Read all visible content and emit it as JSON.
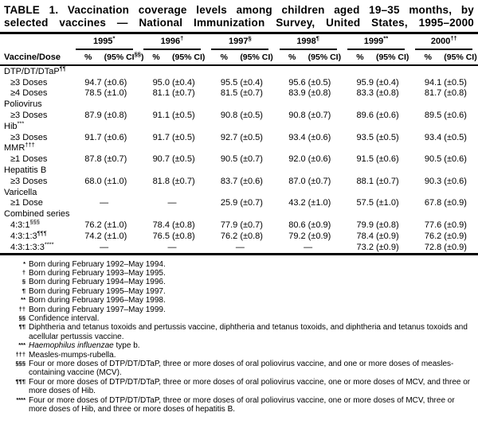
{
  "title": {
    "line1": "TABLE 1. Vaccination coverage levels among children aged 19–35 months, by",
    "line2": "selected vaccines — National Immunization Survey, United States, 1995–2000"
  },
  "table": {
    "row_header_label": "Vaccine/Dose",
    "pct_label": "%",
    "ci_prefix": "(95% CI",
    "ci_suffix": ")",
    "no_data_symbol": "—",
    "years": [
      {
        "year": "1995",
        "marker": "*",
        "ci_marker": "§§"
      },
      {
        "year": "1996",
        "marker": "†",
        "ci_marker": ""
      },
      {
        "year": "1997",
        "marker": "§",
        "ci_marker": ""
      },
      {
        "year": "1998",
        "marker": "¶",
        "ci_marker": ""
      },
      {
        "year": "1999",
        "marker": "**",
        "ci_marker": ""
      },
      {
        "year": "2000",
        "marker": "††",
        "ci_marker": ""
      }
    ],
    "rows": [
      {
        "label": "DTP/DT/DTaP",
        "marker": "¶¶",
        "type": "group",
        "values": []
      },
      {
        "label": "≥3 Doses",
        "marker": "",
        "type": "dose",
        "values": [
          [
            "94.7",
            "(±0.6)"
          ],
          [
            "95.0",
            "(±0.4)"
          ],
          [
            "95.5",
            "(±0.4)"
          ],
          [
            "95.6",
            "(±0.5)"
          ],
          [
            "95.9",
            "(±0.4)"
          ],
          [
            "94.1",
            "(±0.5)"
          ]
        ]
      },
      {
        "label": "≥4 Doses",
        "marker": "",
        "type": "dose",
        "values": [
          [
            "78.5",
            "(±1.0)"
          ],
          [
            "81.1",
            "(±0.7)"
          ],
          [
            "81.5",
            "(±0.7)"
          ],
          [
            "83.9",
            "(±0.8)"
          ],
          [
            "83.3",
            "(±0.8)"
          ],
          [
            "81.7",
            "(±0.8)"
          ]
        ]
      },
      {
        "label": "Poliovirus",
        "marker": "",
        "type": "group",
        "values": []
      },
      {
        "label": "≥3 Doses",
        "marker": "",
        "type": "dose",
        "values": [
          [
            "87.9",
            "(±0.8)"
          ],
          [
            "91.1",
            "(±0.5)"
          ],
          [
            "90.8",
            "(±0.5)"
          ],
          [
            "90.8",
            "(±0.7)"
          ],
          [
            "89.6",
            "(±0.6)"
          ],
          [
            "89.5",
            "(±0.6)"
          ]
        ]
      },
      {
        "label": "Hib",
        "marker": "***",
        "type": "group",
        "values": []
      },
      {
        "label": "≥3 Doses",
        "marker": "",
        "type": "dose",
        "values": [
          [
            "91.7",
            "(±0.6)"
          ],
          [
            "91.7",
            "(±0.5)"
          ],
          [
            "92.7",
            "(±0.5)"
          ],
          [
            "93.4",
            "(±0.6)"
          ],
          [
            "93.5",
            "(±0.5)"
          ],
          [
            "93.4",
            "(±0.5)"
          ]
        ]
      },
      {
        "label": "MMR",
        "marker": "†††",
        "type": "group",
        "values": []
      },
      {
        "label": "≥1 Doses",
        "marker": "",
        "type": "dose",
        "values": [
          [
            "87.8",
            "(±0.7)"
          ],
          [
            "90.7",
            "(±0.5)"
          ],
          [
            "90.5",
            "(±0.7)"
          ],
          [
            "92.0",
            "(±0.6)"
          ],
          [
            "91.5",
            "(±0.6)"
          ],
          [
            "90.5",
            "(±0.6)"
          ]
        ]
      },
      {
        "label": "Hepatitis B",
        "marker": "",
        "type": "group",
        "values": []
      },
      {
        "label": "≥3 Doses",
        "marker": "",
        "type": "dose",
        "values": [
          [
            "68.0",
            "(±1.0)"
          ],
          [
            "81.8",
            "(±0.7)"
          ],
          [
            "83.7",
            "(±0.6)"
          ],
          [
            "87.0",
            "(±0.7)"
          ],
          [
            "88.1",
            "(±0.7)"
          ],
          [
            "90.3",
            "(±0.6)"
          ]
        ]
      },
      {
        "label": "Varicella",
        "marker": "",
        "type": "group",
        "values": []
      },
      {
        "label": "≥1 Dose",
        "marker": "",
        "type": "dose",
        "values": [
          [
            "—",
            ""
          ],
          [
            "—",
            ""
          ],
          [
            "25.9",
            "(±0.7)"
          ],
          [
            "43.2",
            "(±1.0)"
          ],
          [
            "57.5",
            "(±1.0)"
          ],
          [
            "67.8",
            "(±0.9)"
          ]
        ]
      },
      {
        "label": "Combined series",
        "marker": "",
        "type": "group",
        "values": []
      },
      {
        "label": "4:3:1",
        "marker": "§§§",
        "type": "dose",
        "values": [
          [
            "76.2",
            "(±1.0)"
          ],
          [
            "78.4",
            "(±0.8)"
          ],
          [
            "77.9",
            "(±0.7)"
          ],
          [
            "80.6",
            "(±0.9)"
          ],
          [
            "79.9",
            "(±0.8)"
          ],
          [
            "77.6",
            "(±0.9)"
          ]
        ]
      },
      {
        "label": "4:3:1:3",
        "marker": "¶¶¶",
        "type": "dose",
        "values": [
          [
            "74.2",
            "(±1.0)"
          ],
          [
            "76.5",
            "(±0.8)"
          ],
          [
            "76.2",
            "(±0.8)"
          ],
          [
            "79.2",
            "(±0.9)"
          ],
          [
            "78.4",
            "(±0.9)"
          ],
          [
            "76.2",
            "(±0.9)"
          ]
        ]
      },
      {
        "label": "4:3:1:3:3",
        "marker": "****",
        "type": "dose",
        "values": [
          [
            "—",
            ""
          ],
          [
            "—",
            ""
          ],
          [
            "—",
            ""
          ],
          [
            "—",
            ""
          ],
          [
            "73.2",
            "(±0.9)"
          ],
          [
            "72.8",
            "(±0.9)"
          ]
        ]
      }
    ]
  },
  "footnotes": [
    {
      "marker": "*",
      "text": "Born during February 1992–May 1994."
    },
    {
      "marker": "†",
      "text": "Born during February 1993–May 1995."
    },
    {
      "marker": "§",
      "text": "Born during February 1994–May 1996."
    },
    {
      "marker": "¶",
      "text": "Born during February 1995–May 1997."
    },
    {
      "marker": "**",
      "text": "Born during February 1996–May 1998."
    },
    {
      "marker": "††",
      "text": "Born during February 1997–May 1999."
    },
    {
      "marker": "§§",
      "text": "Confidence interval."
    },
    {
      "marker": "¶¶",
      "text": "Diphtheria and tetanus toxoids and pertussis vaccine, diphtheria and tetanus toxoids, and diphtheria and tetanus toxoids and acellular pertussis vaccine."
    },
    {
      "marker": "***",
      "parts": [
        {
          "text": "Haemophilus influenzae",
          "italic": true
        },
        {
          "text": " type b.",
          "italic": false
        }
      ]
    },
    {
      "marker": "†††",
      "text": "Measles-mumps-rubella."
    },
    {
      "marker": "§§§",
      "text": "Four or more doses of DTP/DT/DTaP, three or more doses of oral poliovirus vaccine, and one or more doses of measles-containing vaccine (MCV)."
    },
    {
      "marker": "¶¶¶",
      "text": "Four or more doses of DTP/DT/DTaP, three or more doses of oral poliovirus vaccine, one or more doses of MCV, and three or more doses of Hib."
    },
    {
      "marker": "****",
      "text": "Four or more doses of DTP/DT/DTaP, three or more doses of oral poliovirus vaccine, one or more doses of MCV, three or more doses of Hib, and three or more doses of hepatitis B."
    }
  ]
}
